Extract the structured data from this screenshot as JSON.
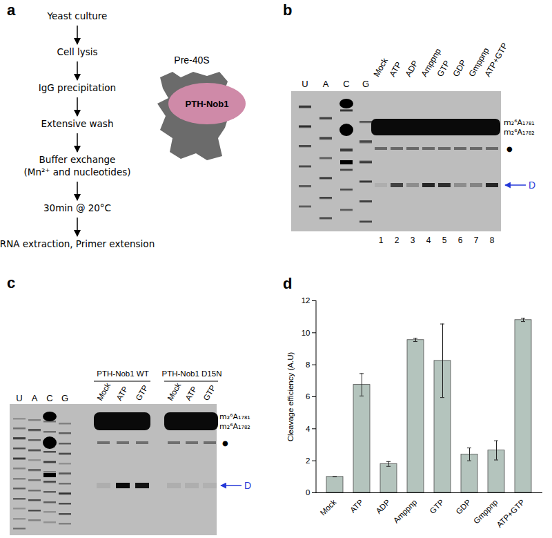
{
  "panel_labels": [
    "a",
    "b",
    "c",
    "d"
  ],
  "flowchart": {
    "steps": [
      "Yeast culture",
      "Cell lysis",
      "IgG precipitation",
      "Extensive wash",
      "Buffer exchange\n(Mn²⁺ and nucleotides)",
      "30min @ 20°C",
      "RNA extraction, Primer extension"
    ],
    "complex_label": "Pre-40S",
    "protein_label": "PTH-Nob1"
  },
  "gel_b": {
    "ladder_lanes": [
      "U",
      "A",
      "C",
      "G"
    ],
    "lanes": [
      "Mock",
      "ATP",
      "ADP",
      "Amppnp",
      "GTP",
      "GDP",
      "Gmppnp",
      "ATP+GTP"
    ],
    "lane_numbers": [
      1,
      2,
      3,
      4,
      5,
      6,
      7,
      8
    ],
    "band_labels": [
      "m₂⁶A₁₇₈₁",
      "m₂⁶A₁₇₈₂"
    ],
    "dot_label": "●",
    "cleavage_label": "D",
    "d_band_intensity": [
      0.08,
      0.65,
      0.25,
      0.8,
      0.75,
      0.25,
      0.3,
      0.8
    ]
  },
  "gel_c": {
    "ladder_lanes": [
      "U",
      "A",
      "C",
      "G"
    ],
    "groups": [
      {
        "name": "PTH-Nob1 WT",
        "lanes": [
          "Mock",
          "ATP",
          "GTP"
        ],
        "d_band_intensity": [
          0.08,
          0.95,
          0.9
        ]
      },
      {
        "name": "PTH-Nob1 D15N",
        "lanes": [
          "Mock",
          "ATP",
          "GTP"
        ],
        "d_band_intensity": [
          0.08,
          0.08,
          0.06
        ]
      }
    ],
    "band_labels": [
      "m₂⁶A₁₇₈₁",
      "m₂⁶A₁₇₈₂"
    ],
    "dot_label": "●",
    "cleavage_label": "D"
  },
  "chart_data": {
    "type": "bar",
    "categories": [
      "Mock",
      "ATP",
      "ADP",
      "Amppnp",
      "GTP",
      "GDP",
      "Gmppnp",
      "ATP+GTP"
    ],
    "values": [
      1,
      6.75,
      1.8,
      9.55,
      8.25,
      2.4,
      2.65,
      10.8
    ],
    "errors": [
      0,
      0.7,
      0.15,
      0.1,
      2.3,
      0.4,
      0.6,
      0.1
    ],
    "color": "#b4c4bd",
    "ylabel": "Cleavage efficiency (A.U)",
    "ylim": [
      0,
      12
    ],
    "yticks": [
      0,
      2,
      4,
      6,
      8,
      10,
      12
    ]
  }
}
